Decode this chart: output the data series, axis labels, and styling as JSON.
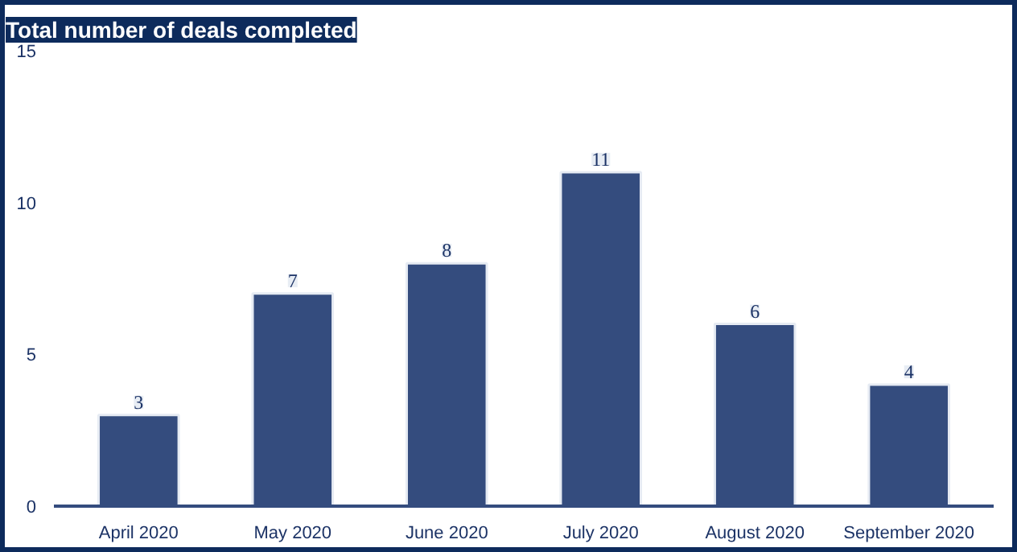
{
  "chart_data": {
    "type": "bar",
    "title": "Total number of deals completed",
    "categories": [
      "April 2020",
      "May 2020",
      "June 2020",
      "July 2020",
      "August 2020",
      "September 2020"
    ],
    "values": [
      3,
      7,
      8,
      11,
      6,
      4
    ],
    "color": "#344c7e",
    "ylim": [
      0,
      15
    ],
    "yticks": [
      0,
      5,
      10,
      15
    ],
    "grid": false,
    "data_labels": true
  }
}
